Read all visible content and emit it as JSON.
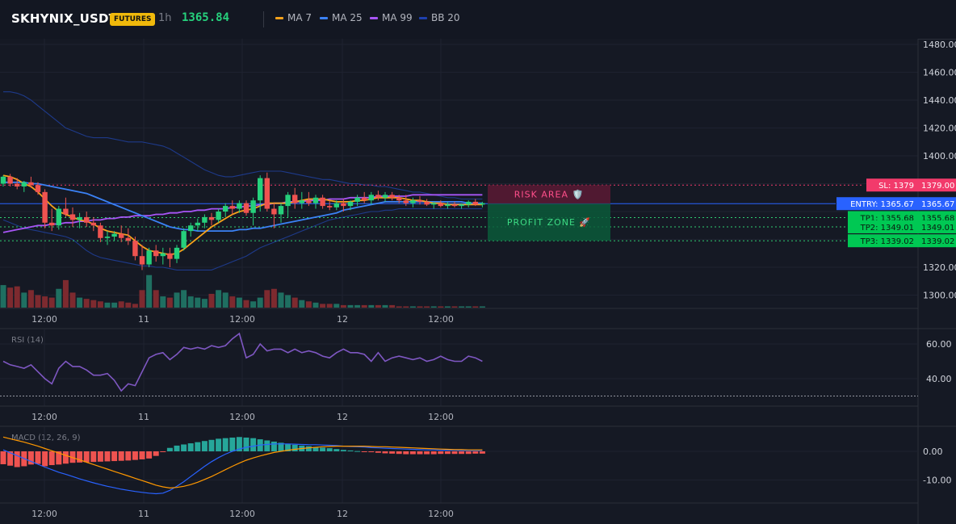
{
  "header": {
    "symbol": "SKHYNIX_USDT",
    "badge": "FUTURES",
    "interval": "1h",
    "last_price": "1365.84",
    "legend": [
      {
        "label": "MA 7",
        "color": "#f7a21b"
      },
      {
        "label": "MA 25",
        "color": "#3b82f6"
      },
      {
        "label": "MA 99",
        "color": "#a855f7"
      },
      {
        "label": "BB 20",
        "color": "#1e40af"
      }
    ]
  },
  "colors": {
    "up": "#26d07c",
    "down": "#ef5350",
    "up_volume": "#1f6f61",
    "down_volume": "#7d2a2f",
    "grid": "#1e2230",
    "background": "#151924",
    "sl": "#f23a6b",
    "entry": "#2962ff",
    "tp": "#00c853",
    "rsi": "#7e57c2",
    "macd_line": "#2962ff",
    "signal_line": "#ff9800",
    "hist_up": "#26a69a",
    "hist_down": "#ef5350"
  },
  "price_axis": {
    "ticks": [
      "1480.00",
      "1460.00",
      "1440.00",
      "1420.00",
      "1400.00",
      "1320.00",
      "1300.00"
    ],
    "tick_values": [
      1480,
      1460,
      1440,
      1420,
      1400,
      1320,
      1300
    ]
  },
  "time_axis": [
    "12:00",
    "11",
    "12:00",
    "12",
    "12:00"
  ],
  "levels": {
    "sl": {
      "label": "SL: 1379",
      "value_label": "1379.00",
      "value": 1379.0
    },
    "entry": {
      "label": "ENTRY: 1365.67",
      "value_label": "1365.67",
      "value": 1365.67
    },
    "tp1": {
      "label": "TP1: 1355.68",
      "value_label": "1355.68",
      "value": 1355.68
    },
    "tp2": {
      "label": "TP2: 1349.01",
      "value_label": "1349.01",
      "value": 1349.01
    },
    "tp3": {
      "label": "TP3: 1339.02",
      "value_label": "1339.02",
      "value": 1339.02
    }
  },
  "zones": {
    "risk": "RISK AREA 🛡️",
    "profit": "PROFIT ZONE 🚀"
  },
  "rsi": {
    "title": "RSI (14)",
    "ticks": [
      "60.00",
      "40.00"
    ],
    "tick_values": [
      60,
      40
    ],
    "oversold": 30
  },
  "macd": {
    "title": "MACD (12, 26, 9)",
    "ticks": [
      "0.00",
      "-10.00"
    ],
    "tick_values": [
      0,
      -10
    ]
  },
  "chart_data": {
    "type": "candlestick",
    "candles": [
      [
        1380,
        1386,
        1378,
        1385
      ],
      [
        1385,
        1387,
        1378,
        1380
      ],
      [
        1380,
        1384,
        1376,
        1378
      ],
      [
        1378,
        1382,
        1374,
        1381
      ],
      [
        1381,
        1385,
        1377,
        1379
      ],
      [
        1379,
        1381,
        1372,
        1374
      ],
      [
        1374,
        1376,
        1348,
        1352
      ],
      [
        1352,
        1362,
        1346,
        1350
      ],
      [
        1350,
        1364,
        1347,
        1362
      ],
      [
        1362,
        1370,
        1356,
        1358
      ],
      [
        1358,
        1363,
        1349,
        1354
      ],
      [
        1354,
        1359,
        1348,
        1356
      ],
      [
        1356,
        1360,
        1349,
        1352
      ],
      [
        1352,
        1356,
        1346,
        1350
      ],
      [
        1350,
        1352,
        1338,
        1341
      ],
      [
        1341,
        1346,
        1336,
        1342
      ],
      [
        1342,
        1346,
        1339,
        1344
      ],
      [
        1344,
        1350,
        1338,
        1341
      ],
      [
        1341,
        1348,
        1336,
        1339
      ],
      [
        1339,
        1342,
        1325,
        1328
      ],
      [
        1328,
        1336,
        1318,
        1322
      ],
      [
        1322,
        1334,
        1320,
        1332
      ],
      [
        1332,
        1336,
        1324,
        1328
      ],
      [
        1328,
        1334,
        1322,
        1330
      ],
      [
        1330,
        1334,
        1320,
        1326
      ],
      [
        1326,
        1336,
        1323,
        1334
      ],
      [
        1334,
        1348,
        1332,
        1346
      ],
      [
        1346,
        1352,
        1342,
        1350
      ],
      [
        1350,
        1355,
        1346,
        1352
      ],
      [
        1352,
        1358,
        1348,
        1356
      ],
      [
        1356,
        1359,
        1350,
        1354
      ],
      [
        1354,
        1362,
        1352,
        1360
      ],
      [
        1360,
        1366,
        1356,
        1364
      ],
      [
        1364,
        1368,
        1358,
        1362
      ],
      [
        1362,
        1368,
        1359,
        1366
      ],
      [
        1366,
        1368,
        1357,
        1359
      ],
      [
        1359,
        1370,
        1350,
        1368
      ],
      [
        1368,
        1386,
        1360,
        1384
      ],
      [
        1384,
        1388,
        1360,
        1362
      ],
      [
        1362,
        1366,
        1348,
        1358
      ],
      [
        1358,
        1366,
        1352,
        1364
      ],
      [
        1364,
        1374,
        1356,
        1372
      ],
      [
        1372,
        1377,
        1362,
        1366
      ],
      [
        1366,
        1374,
        1362,
        1368
      ],
      [
        1368,
        1374,
        1364,
        1366
      ],
      [
        1366,
        1372,
        1362,
        1370
      ],
      [
        1370,
        1372,
        1362,
        1364
      ],
      [
        1364,
        1368,
        1361,
        1363
      ],
      [
        1363,
        1368,
        1361,
        1366
      ],
      [
        1366,
        1369,
        1360,
        1364
      ],
      [
        1364,
        1368,
        1361,
        1367
      ],
      [
        1367,
        1372,
        1364,
        1370
      ],
      [
        1370,
        1374,
        1366,
        1368
      ],
      [
        1368,
        1374,
        1365,
        1372
      ],
      [
        1372,
        1375,
        1368,
        1370
      ],
      [
        1370,
        1374,
        1367,
        1372
      ],
      [
        1372,
        1374,
        1368,
        1370
      ],
      [
        1370,
        1372,
        1366,
        1368
      ],
      [
        1368,
        1372,
        1364,
        1366
      ],
      [
        1366,
        1370,
        1363,
        1368
      ],
      [
        1368,
        1371,
        1365,
        1367
      ],
      [
        1367,
        1369,
        1364,
        1365
      ],
      [
        1365,
        1367,
        1362,
        1366
      ],
      [
        1366,
        1368,
        1363,
        1364
      ],
      [
        1364,
        1367,
        1362,
        1365
      ],
      [
        1365,
        1367,
        1363,
        1364
      ],
      [
        1364,
        1366,
        1362,
        1365
      ],
      [
        1365,
        1368,
        1363,
        1367
      ],
      [
        1367,
        1369,
        1364,
        1365
      ],
      [
        1365,
        1367,
        1363,
        1366
      ]
    ],
    "volume": [
      18,
      16,
      17,
      12,
      14,
      10,
      9,
      8,
      15,
      22,
      12,
      8,
      7,
      6,
      5,
      4,
      4,
      5,
      4,
      3,
      14,
      26,
      14,
      9,
      8,
      12,
      14,
      9,
      8,
      7,
      11,
      14,
      12,
      9,
      8,
      6,
      5,
      8,
      14,
      15,
      12,
      10,
      8,
      6,
      5,
      4,
      3,
      3,
      3,
      2,
      2,
      2,
      2,
      2,
      2,
      2,
      2,
      1,
      1,
      1,
      1,
      1,
      1,
      1,
      1,
      1,
      1,
      1,
      1,
      1
    ],
    "ma7": [
      1386,
      1385,
      1383,
      1380,
      1378,
      1374,
      1369,
      1364,
      1360,
      1358,
      1356,
      1354,
      1353,
      1351,
      1348,
      1346,
      1345,
      1344,
      1343,
      1339,
      1335,
      1332,
      1331,
      1330,
      1329,
      1330,
      1333,
      1337,
      1341,
      1345,
      1349,
      1352,
      1355,
      1358,
      1360,
      1361,
      1362,
      1364,
      1366,
      1366,
      1366,
      1366,
      1367,
      1368,
      1369,
      1369,
      1369,
      1368,
      1367,
      1367,
      1367,
      1368,
      1368,
      1369,
      1370,
      1370,
      1370,
      1370,
      1369,
      1368,
      1368,
      1367,
      1366,
      1366,
      1365,
      1365,
      1365,
      1365,
      1365,
      1365
    ],
    "ma25": [
      1381,
      1381,
      1381,
      1381,
      1380,
      1380,
      1379,
      1378,
      1377,
      1376,
      1375,
      1374,
      1373,
      1371,
      1369,
      1367,
      1365,
      1363,
      1361,
      1359,
      1357,
      1355,
      1353,
      1351,
      1349,
      1348,
      1347,
      1347,
      1346,
      1346,
      1346,
      1346,
      1346,
      1346,
      1347,
      1347,
      1348,
      1348,
      1349,
      1350,
      1351,
      1352,
      1353,
      1354,
      1355,
      1356,
      1357,
      1358,
      1359,
      1361,
      1362,
      1363,
      1364,
      1365,
      1366,
      1367,
      1367,
      1367,
      1367,
      1367,
      1367,
      1367,
      1367,
      1367,
      1367,
      1367,
      1367,
      1366,
      1366,
      1366
    ],
    "ma99": [
      1345,
      1346,
      1347,
      1348,
      1349,
      1350,
      1350,
      1351,
      1351,
      1352,
      1352,
      1353,
      1353,
      1354,
      1354,
      1355,
      1355,
      1356,
      1356,
      1357,
      1357,
      1357,
      1358,
      1358,
      1359,
      1359,
      1360,
      1360,
      1361,
      1361,
      1362,
      1362,
      1362,
      1363,
      1363,
      1364,
      1364,
      1365,
      1365,
      1366,
      1366,
      1367,
      1367,
      1367,
      1368,
      1368,
      1368,
      1369,
      1369,
      1369,
      1370,
      1370,
      1370,
      1370,
      1371,
      1371,
      1371,
      1371,
      1371,
      1372,
      1372,
      1372,
      1372,
      1372,
      1372,
      1372,
      1372,
      1372,
      1372,
      1372
    ],
    "bb_upper": [
      1446,
      1446,
      1445,
      1443,
      1440,
      1436,
      1432,
      1428,
      1424,
      1420,
      1418,
      1416,
      1414,
      1413,
      1413,
      1413,
      1412,
      1411,
      1410,
      1410,
      1410,
      1409,
      1408,
      1407,
      1405,
      1402,
      1399,
      1396,
      1393,
      1390,
      1388,
      1386,
      1385,
      1385,
      1386,
      1387,
      1388,
      1389,
      1389,
      1389,
      1389,
      1388,
      1387,
      1386,
      1385,
      1384,
      1383,
      1383,
      1382,
      1381,
      1380,
      1380,
      1379,
      1379,
      1378,
      1378,
      1377,
      1376,
      1375,
      1374,
      1374,
      1373,
      1372,
      1371,
      1370,
      1370,
      1369,
      1369,
      1369,
      1369
    ],
    "bb_lower": [
      1354,
      1352,
      1350,
      1348,
      1347,
      1346,
      1345,
      1344,
      1343,
      1342,
      1340,
      1336,
      1332,
      1329,
      1327,
      1326,
      1325,
      1324,
      1323,
      1322,
      1321,
      1321,
      1320,
      1320,
      1319,
      1318,
      1318,
      1318,
      1318,
      1318,
      1318,
      1320,
      1322,
      1324,
      1326,
      1328,
      1331,
      1334,
      1336,
      1338,
      1340,
      1342,
      1344,
      1346,
      1348,
      1350,
      1352,
      1354,
      1355,
      1356,
      1357,
      1358,
      1359,
      1360,
      1360,
      1361,
      1361,
      1362,
      1362,
      1362,
      1362,
      1362,
      1362,
      1362,
      1362,
      1362,
      1362,
      1362,
      1362,
      1362
    ],
    "rsi": [
      50,
      48,
      47,
      46,
      48,
      44,
      40,
      37,
      46,
      50,
      47,
      47,
      45,
      42,
      42,
      43,
      39,
      33,
      37,
      36,
      44,
      52,
      54,
      55,
      51,
      54,
      58,
      57,
      58,
      57,
      59,
      58,
      59,
      63,
      66,
      52,
      54,
      60,
      56,
      57,
      57,
      55,
      57,
      55,
      56,
      55,
      53,
      52,
      55,
      57,
      55,
      55,
      54,
      50,
      55,
      50,
      52,
      53,
      52,
      51,
      52,
      50,
      51,
      53,
      51,
      50,
      50,
      53,
      52,
      50
    ],
    "macd_hist": [
      -4.5,
      -5.0,
      -5.5,
      -5.2,
      -4.6,
      -4.4,
      -5.2,
      -4.8,
      -4.6,
      -4.3,
      -4.0,
      -3.9,
      -3.8,
      -3.7,
      -3.6,
      -3.5,
      -3.4,
      -3.3,
      -3.2,
      -3.0,
      -2.8,
      -2.5,
      -1.6,
      -0.2,
      1.2,
      2.0,
      2.4,
      2.8,
      3.2,
      3.6,
      4.0,
      4.4,
      4.6,
      4.8,
      5.0,
      4.8,
      4.6,
      4.2,
      3.8,
      3.4,
      3.0,
      2.6,
      2.3,
      2.0,
      1.8,
      1.5,
      1.3,
      1.1,
      0.8,
      0.5,
      0.3,
      0.1,
      -0.1,
      -0.3,
      -0.5,
      -0.7,
      -0.8,
      -0.9,
      -1.0,
      -1.0,
      -1.0,
      -1.0,
      -1.0,
      -0.9,
      -0.9,
      -0.9,
      -0.9,
      -0.9,
      -0.8,
      -0.8
    ],
    "macd_line": [
      0.5,
      -0.5,
      -1.5,
      -2.5,
      -3.5,
      -4.5,
      -5.5,
      -6.4,
      -7.3,
      -8.0,
      -8.8,
      -9.6,
      -10.3,
      -11.0,
      -11.6,
      -12.2,
      -12.7,
      -13.2,
      -13.6,
      -14.0,
      -14.3,
      -14.6,
      -14.8,
      -14.6,
      -13.6,
      -12.2,
      -10.6,
      -8.8,
      -7.0,
      -5.2,
      -3.6,
      -2.2,
      -1.0,
      0.0,
      0.8,
      1.4,
      1.8,
      2.2,
      2.4,
      2.6,
      2.6,
      2.6,
      2.5,
      2.4,
      2.3,
      2.3,
      2.2,
      2.1,
      2.0,
      1.8,
      1.7,
      1.6,
      1.5,
      1.3,
      1.2,
      1.1,
      1.0,
      0.9,
      0.8,
      0.7,
      0.6,
      0.5,
      0.5,
      0.4,
      0.4,
      0.4,
      0.3,
      0.3,
      0.3,
      0.3
    ],
    "signal_line": [
      5.0,
      4.4,
      3.8,
      3.2,
      2.5,
      1.8,
      1.0,
      0.2,
      -0.6,
      -1.4,
      -2.2,
      -3.0,
      -3.8,
      -4.6,
      -5.4,
      -6.2,
      -7.0,
      -7.8,
      -8.6,
      -9.4,
      -10.2,
      -11.0,
      -11.8,
      -12.4,
      -12.8,
      -12.6,
      -12.2,
      -11.6,
      -10.8,
      -9.8,
      -8.8,
      -7.6,
      -6.4,
      -5.2,
      -4.1,
      -3.1,
      -2.3,
      -1.6,
      -1.0,
      -0.4,
      0.0,
      0.4,
      0.7,
      1.0,
      1.2,
      1.4,
      1.6,
      1.7,
      1.8,
      1.8,
      1.8,
      1.8,
      1.8,
      1.7,
      1.6,
      1.6,
      1.5,
      1.4,
      1.3,
      1.2,
      1.1,
      1.0,
      0.9,
      0.8,
      0.7,
      0.6,
      0.6,
      0.5,
      0.5,
      0.5
    ]
  }
}
